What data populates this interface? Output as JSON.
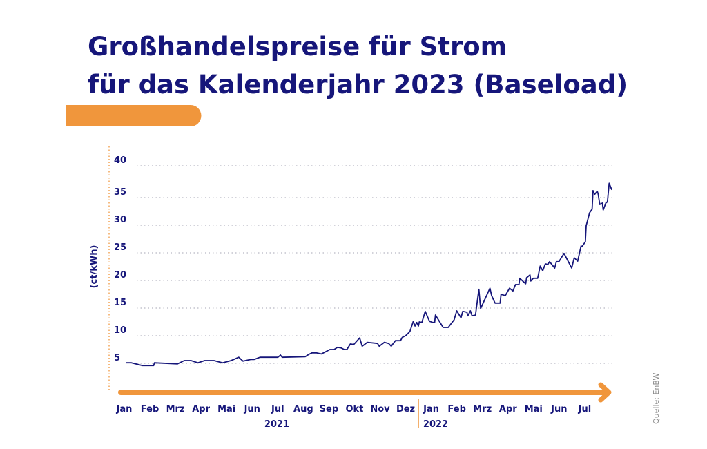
{
  "title_line1": "Großhandelspreise für Strom",
  "title_line2": "für das Kalenderjahr 2023 (Baseload)",
  "source": "Quelle: EnBW",
  "colors": {
    "primary": "#16167a",
    "accent": "#f0963c",
    "grid": "#b8b8c4"
  },
  "chart_data": {
    "type": "line",
    "title": "Großhandelspreise für Strom für das Kalenderjahr 2023 (Baseload)",
    "xlabel": "",
    "ylabel": "(ct/kWh)",
    "ylim": [
      0,
      40
    ],
    "yticks": [
      "5",
      "10",
      "15",
      "20",
      "25",
      "30",
      "35",
      "40"
    ],
    "grid": true,
    "xticks": [
      "Jan",
      "Feb",
      "Mrz",
      "Apr",
      "Mai",
      "Jun",
      "Jul",
      "Aug",
      "Sep",
      "Okt",
      "Nov",
      "Dez",
      "Jan",
      "Feb",
      "Mrz",
      "Apr",
      "Mai",
      "Jun",
      "Jul"
    ],
    "years": [
      "2021",
      "2022"
    ],
    "series": [
      {
        "points": [
          [
            "2021-01-01",
            5.1
          ],
          [
            "2021-01-07",
            5.1
          ],
          [
            "2021-01-20",
            4.6
          ],
          [
            "2021-02-03",
            4.6
          ],
          [
            "2021-02-04",
            5.1
          ],
          [
            "2021-03-01",
            4.9
          ],
          [
            "2021-03-09",
            5.5
          ],
          [
            "2021-03-17",
            5.5
          ],
          [
            "2021-03-25",
            5.1
          ],
          [
            "2021-04-03",
            5.5
          ],
          [
            "2021-04-14",
            5.5
          ],
          [
            "2021-04-24",
            5.1
          ],
          [
            "2021-05-04",
            5.5
          ],
          [
            "2021-05-13",
            6.1
          ],
          [
            "2021-05-18",
            5.4
          ],
          [
            "2021-05-27",
            5.7
          ],
          [
            "2021-06-01",
            5.7
          ],
          [
            "2021-06-08",
            6.1
          ],
          [
            "2021-06-29",
            6.1
          ],
          [
            "2021-07-02",
            6.5
          ],
          [
            "2021-07-04",
            6.1
          ],
          [
            "2021-08-01",
            6.2
          ],
          [
            "2021-08-05",
            6.6
          ],
          [
            "2021-08-09",
            6.9
          ],
          [
            "2021-08-14",
            6.9
          ],
          [
            "2021-08-20",
            6.7
          ],
          [
            "2021-08-30",
            7.5
          ],
          [
            "2021-09-05",
            7.5
          ],
          [
            "2021-09-09",
            7.9
          ],
          [
            "2021-09-13",
            7.8
          ],
          [
            "2021-09-17",
            7.5
          ],
          [
            "2021-09-20",
            7.5
          ],
          [
            "2021-09-24",
            8.5
          ],
          [
            "2021-09-28",
            8.4
          ],
          [
            "2021-10-05",
            9.6
          ],
          [
            "2021-10-08",
            8.1
          ],
          [
            "2021-10-14",
            8.8
          ],
          [
            "2021-10-26",
            8.6
          ],
          [
            "2021-10-28",
            8.1
          ],
          [
            "2021-11-04",
            8.8
          ],
          [
            "2021-11-09",
            8.6
          ],
          [
            "2021-11-12",
            8.1
          ],
          [
            "2021-11-17",
            9.1
          ],
          [
            "2021-11-23",
            9.1
          ],
          [
            "2021-11-25",
            9.7
          ],
          [
            "2021-11-29",
            10.0
          ],
          [
            "2021-12-04",
            10.75
          ],
          [
            "2021-12-08",
            12.6
          ],
          [
            "2021-12-10",
            11.75
          ],
          [
            "2021-12-12",
            12.4
          ],
          [
            "2021-12-14",
            11.75
          ],
          [
            "2021-12-15",
            12.5
          ],
          [
            "2021-12-18",
            12.4
          ],
          [
            "2021-12-22",
            14.4
          ],
          [
            "2021-12-27",
            12.6
          ],
          [
            "2022-01-01",
            12.4
          ],
          [
            "2022-01-03",
            12.4
          ],
          [
            "2022-01-04",
            13.75
          ],
          [
            "2022-01-13",
            11.5
          ],
          [
            "2022-01-19",
            11.5
          ],
          [
            "2022-01-26",
            12.9
          ],
          [
            "2022-01-29",
            14.5
          ],
          [
            "2022-02-04",
            13.25
          ],
          [
            "2022-02-06",
            14.4
          ],
          [
            "2022-02-11",
            14.25
          ],
          [
            "2022-02-12",
            13.6
          ],
          [
            "2022-02-15",
            14.5
          ],
          [
            "2022-02-17",
            13.6
          ],
          [
            "2022-02-21",
            13.75
          ],
          [
            "2022-02-25",
            18.4
          ],
          [
            "2022-02-27",
            14.9
          ],
          [
            "2022-03-08",
            18.6
          ],
          [
            "2022-03-10",
            17.25
          ],
          [
            "2022-03-14",
            15.9
          ],
          [
            "2022-03-20",
            15.9
          ],
          [
            "2022-03-21",
            17.5
          ],
          [
            "2022-03-26",
            17.25
          ],
          [
            "2022-04-01",
            18.6
          ],
          [
            "2022-04-05",
            18.1
          ],
          [
            "2022-04-08",
            19.25
          ],
          [
            "2022-04-12",
            19.25
          ],
          [
            "2022-04-13",
            20.4
          ],
          [
            "2022-04-20",
            19.4
          ],
          [
            "2022-04-21",
            20.5
          ],
          [
            "2022-04-25",
            21.0
          ],
          [
            "2022-04-26",
            19.9
          ],
          [
            "2022-04-29",
            20.4
          ],
          [
            "2022-05-04",
            20.4
          ],
          [
            "2022-05-07",
            22.6
          ],
          [
            "2022-05-10",
            21.75
          ],
          [
            "2022-05-13",
            23.0
          ],
          [
            "2022-05-16",
            22.9
          ],
          [
            "2022-05-18",
            23.4
          ],
          [
            "2022-05-24",
            22.25
          ],
          [
            "2022-05-26",
            23.4
          ],
          [
            "2022-05-29",
            23.4
          ],
          [
            "2022-06-05",
            24.9
          ],
          [
            "2022-06-14",
            22.25
          ],
          [
            "2022-06-17",
            24.1
          ],
          [
            "2022-06-21",
            23.5
          ],
          [
            "2022-06-25",
            26.25
          ],
          [
            "2022-06-26",
            26.1
          ],
          [
            "2022-06-30",
            27.0
          ],
          [
            "2022-07-01",
            29.9
          ],
          [
            "2022-07-05",
            32.25
          ],
          [
            "2022-07-08",
            32.9
          ],
          [
            "2022-07-09",
            36.1
          ],
          [
            "2022-07-11",
            35.5
          ],
          [
            "2022-07-14",
            36.0
          ],
          [
            "2022-07-15",
            35.6
          ],
          [
            "2022-07-17",
            33.75
          ],
          [
            "2022-07-20",
            34.0
          ],
          [
            "2022-07-21",
            32.75
          ],
          [
            "2022-07-24",
            34.0
          ],
          [
            "2022-07-26",
            34.25
          ],
          [
            "2022-07-28",
            37.25
          ],
          [
            "2022-08-01",
            36.25
          ]
        ]
      }
    ]
  }
}
